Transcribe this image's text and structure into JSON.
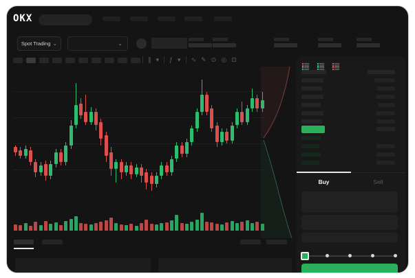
{
  "header": {
    "logo_text": "OKX",
    "nav_placeholder_count": 5
  },
  "subbar": {
    "market_selector_label": "Spot Trading",
    "chevron": "⌄",
    "stat_group_count": 5
  },
  "chart_toolbar": {
    "timeframe_button_count": 10,
    "icons": {
      "candle_type": "∥",
      "chevron": "▾",
      "indicators": "ƒ",
      "line_type": "∿",
      "draw": "✎",
      "camera": "⊙",
      "settings": "◎",
      "fullscreen": "⊡"
    }
  },
  "order_book": {
    "view_modes": [
      "book-combined",
      "book-bids",
      "book-asks"
    ],
    "asks_price_widths": [
      32,
      30,
      32,
      28,
      32,
      30
    ],
    "asks_amount_widths": [
      30,
      26,
      28,
      24,
      28,
      26
    ],
    "bids_price_widths": [
      28,
      26,
      28,
      26
    ],
    "bids_amount_widths": [
      0,
      27,
      27,
      27
    ],
    "last_price_highlight_color": "#2bb05c"
  },
  "trade_panel": {
    "buy_tab_label": "Buy",
    "sell_tab_label": "Sell",
    "slider_stop_count": 5,
    "slider_value_index": 0,
    "submit_button_label": "",
    "submit_button_color": "#2bb05c"
  },
  "colors": {
    "window_bg": "#141414",
    "panel_bg": "#191919",
    "up_green": "#2ebd70",
    "down_red": "#d9504e",
    "accent_green": "#2bb05c",
    "depth_ask_line": "#7a4040",
    "depth_bid_line": "#2f5f4a"
  },
  "chart_data": {
    "type": "candlestick",
    "title": "Spot Trading price chart with volume and depth",
    "price_scale": [
      30,
      100
    ],
    "candles_ohlc": [
      [
        57,
        58,
        52,
        54
      ],
      [
        55,
        57,
        50,
        52
      ],
      [
        52,
        58,
        50,
        56
      ],
      [
        55,
        57,
        46,
        48
      ],
      [
        48,
        50,
        39,
        42
      ],
      [
        42,
        48,
        40,
        46
      ],
      [
        47,
        49,
        37,
        40
      ],
      [
        40,
        49,
        38,
        47
      ],
      [
        47,
        56,
        45,
        54
      ],
      [
        54,
        56,
        46,
        48
      ],
      [
        48,
        60,
        46,
        58
      ],
      [
        58,
        73,
        56,
        70
      ],
      [
        70,
        95,
        68,
        82
      ],
      [
        83,
        86,
        74,
        76
      ],
      [
        78,
        88,
        70,
        72
      ],
      [
        72,
        81,
        70,
        78
      ],
      [
        78,
        80,
        67,
        70
      ],
      [
        72,
        74,
        58,
        62
      ],
      [
        64,
        66,
        48,
        52
      ],
      [
        54,
        57,
        40,
        44
      ],
      [
        44,
        50,
        36,
        48
      ],
      [
        48,
        50,
        38,
        42
      ],
      [
        42,
        48,
        40,
        46
      ],
      [
        46,
        48,
        38,
        41
      ],
      [
        41,
        47,
        39,
        45
      ],
      [
        45,
        47,
        36,
        40
      ],
      [
        42,
        44,
        32,
        36
      ],
      [
        40,
        42,
        31,
        35
      ],
      [
        35,
        42,
        33,
        40
      ],
      [
        40,
        48,
        38,
        46
      ],
      [
        46,
        48,
        40,
        42
      ],
      [
        42,
        52,
        40,
        50
      ],
      [
        50,
        60,
        48,
        58
      ],
      [
        58,
        60,
        51,
        53
      ],
      [
        53,
        62,
        51,
        60
      ],
      [
        60,
        70,
        58,
        68
      ],
      [
        68,
        80,
        66,
        78
      ],
      [
        78,
        97,
        76,
        88
      ],
      [
        88,
        90,
        76,
        78
      ],
      [
        80,
        82,
        66,
        68
      ],
      [
        70,
        72,
        57,
        60
      ],
      [
        60,
        68,
        58,
        66
      ],
      [
        66,
        68,
        59,
        61
      ],
      [
        61,
        72,
        59,
        70
      ],
      [
        70,
        80,
        68,
        78
      ],
      [
        78,
        84,
        70,
        72
      ],
      [
        72,
        82,
        70,
        80
      ],
      [
        80,
        92,
        78,
        86
      ],
      [
        86,
        88,
        78,
        80
      ],
      [
        80,
        90,
        78,
        85
      ]
    ],
    "volumes": [
      9,
      8,
      11,
      7,
      13,
      8,
      14,
      10,
      12,
      8,
      14,
      17,
      21,
      11,
      10,
      9,
      11,
      13,
      15,
      19,
      11,
      9,
      8,
      10,
      7,
      11,
      16,
      10,
      9,
      11,
      12,
      15,
      23,
      11,
      10,
      13,
      16,
      26,
      13,
      12,
      10,
      9,
      12,
      14,
      11,
      13,
      15,
      11,
      13,
      10
    ],
    "up_color": "#2ebd70",
    "down_color": "#d9504e",
    "grid": true
  }
}
